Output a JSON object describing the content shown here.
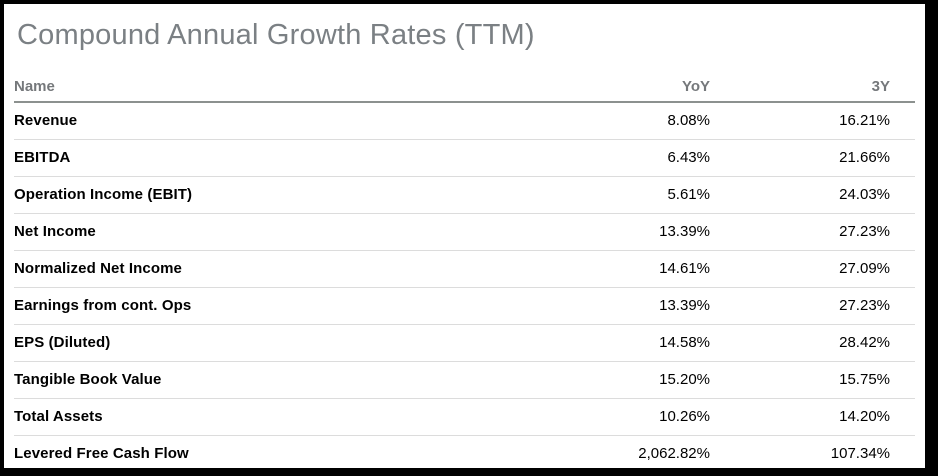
{
  "title": "Compound Annual Growth Rates (TTM)",
  "table": {
    "columns": {
      "name": "Name",
      "yoy": "YoY",
      "y3": "3Y"
    },
    "rows": [
      {
        "name": "Revenue",
        "yoy": "8.08%",
        "y3": "16.21%"
      },
      {
        "name": "EBITDA",
        "yoy": "6.43%",
        "y3": "21.66%"
      },
      {
        "name": "Operation Income (EBIT)",
        "yoy": "5.61%",
        "y3": "24.03%"
      },
      {
        "name": "Net Income",
        "yoy": "13.39%",
        "y3": "27.23%"
      },
      {
        "name": "Normalized Net Income",
        "yoy": "14.61%",
        "y3": "27.09%"
      },
      {
        "name": "Earnings from cont. Ops",
        "yoy": "13.39%",
        "y3": "27.23%"
      },
      {
        "name": "EPS (Diluted)",
        "yoy": "14.58%",
        "y3": "28.42%"
      },
      {
        "name": "Tangible Book Value",
        "yoy": "15.20%",
        "y3": "15.75%"
      },
      {
        "name": "Total Assets",
        "yoy": "10.26%",
        "y3": "14.20%"
      },
      {
        "name": "Levered Free Cash Flow",
        "yoy": "2,062.82%",
        "y3": "107.34%"
      }
    ]
  },
  "colors": {
    "title_gray": "#7b8084",
    "header_gray": "#75787b",
    "header_rule": "#8c918f",
    "row_separator": "#dcdcdc",
    "text_black": "#000000",
    "frame_black": "#000000",
    "background": "#ffffff"
  }
}
